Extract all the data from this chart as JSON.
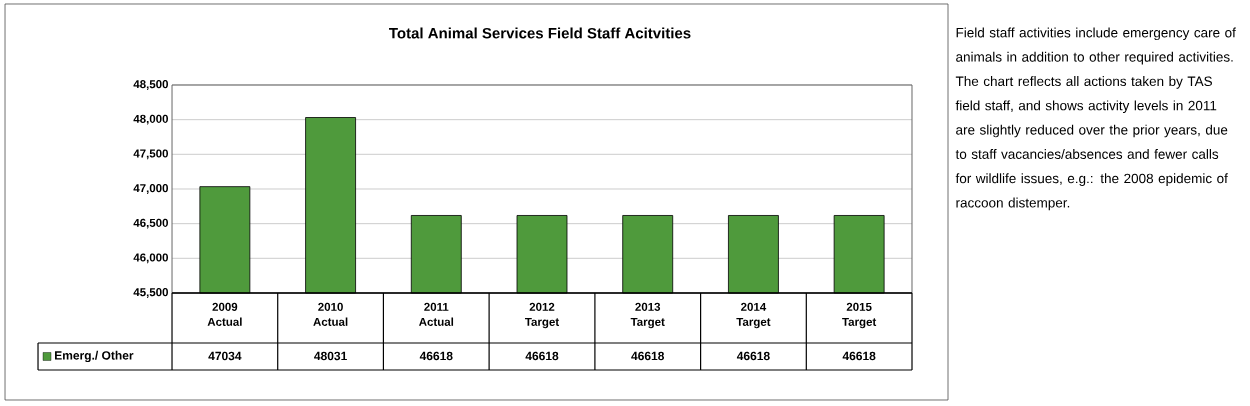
{
  "chart_data": {
    "type": "bar",
    "title": "Total Animal Services Field Staff Acitvities",
    "categories": [
      "2009 Actual",
      "2010 Actual",
      "2011 Actual",
      "2012 Target",
      "2013 Target",
      "2014 Target",
      "2015 Target"
    ],
    "series": [
      {
        "name": "Emerg./ Other",
        "color": "#4f9a3c",
        "values": [
          47034,
          48031,
          46618,
          46618,
          46618,
          46618,
          46618
        ]
      }
    ],
    "ylim": [
      45500,
      48500
    ],
    "yticks": [
      {
        "value": 45500,
        "label": "45,500"
      },
      {
        "value": 46000,
        "label": "46,000"
      },
      {
        "value": 46500,
        "label": "46,500"
      },
      {
        "value": 47000,
        "label": "47,000"
      },
      {
        "value": 47500,
        "label": "47,500"
      },
      {
        "value": 48000,
        "label": "48,000"
      },
      {
        "value": 48500,
        "label": "48,500"
      }
    ],
    "grid": "y",
    "legend": "bottom",
    "data_labels": true,
    "annotations": [
      "Field staff activities include emergency care of animals in addition to other required activities. The chart reflects all actions taken by TAS field staff, and shows activity levels in 2011 are slightly reduced over the prior years, due to staff vacancies/absences and fewer calls for wildlife issues, e.g.: the 2008 epidemic of raccoon distemper."
    ]
  }
}
